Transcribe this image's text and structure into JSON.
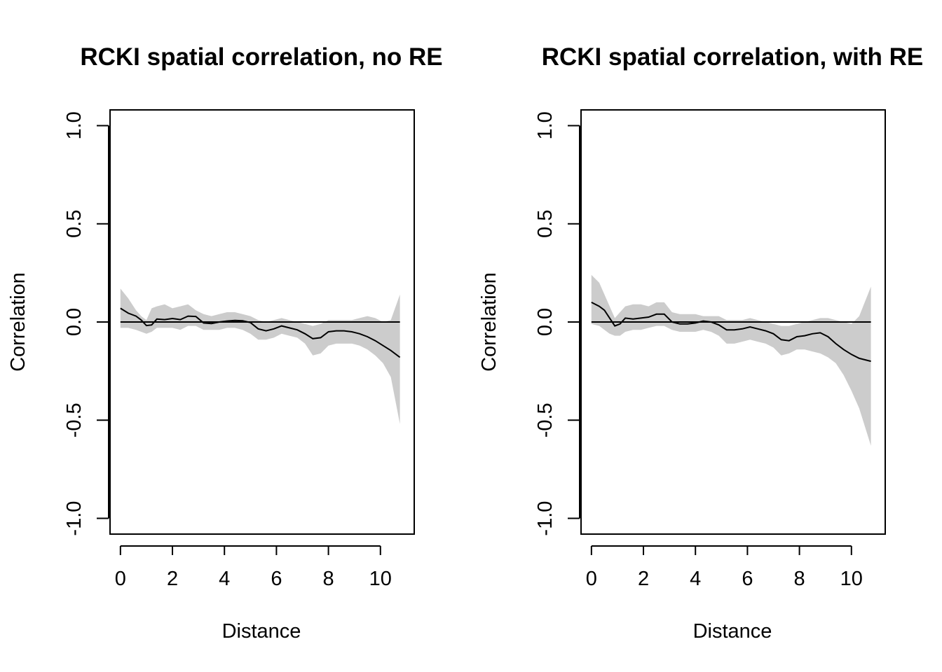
{
  "figure": {
    "background": "#ffffff",
    "band_color": "#cccccc",
    "line_color": "#000000"
  },
  "chart_data": [
    {
      "type": "line",
      "title": "RCKI spatial correlation, no RE",
      "xlabel": "Distance",
      "ylabel": "Correlation",
      "xlim": [
        -0.4,
        11.3
      ],
      "ylim": [
        -1.08,
        1.08
      ],
      "xticks": [
        0,
        2,
        4,
        6,
        8,
        10
      ],
      "yticks": [
        -1.0,
        -0.5,
        0.0,
        0.5,
        1.0
      ],
      "xtick_labels": [
        "0",
        "2",
        "4",
        "6",
        "8",
        "10"
      ],
      "ytick_labels": [
        "-1.0",
        "-0.5",
        "0.0",
        "0.5",
        "1.0"
      ],
      "reference_line": 0,
      "reference_range": [
        0,
        10.75
      ],
      "x": [
        0,
        0.3,
        0.6,
        0.8,
        1.0,
        1.2,
        1.4,
        1.7,
        2.0,
        2.3,
        2.6,
        2.9,
        3.2,
        3.5,
        3.8,
        4.1,
        4.4,
        4.7,
        5.0,
        5.3,
        5.6,
        5.9,
        6.2,
        6.5,
        6.8,
        7.1,
        7.4,
        7.7,
        8.0,
        8.3,
        8.6,
        8.9,
        9.2,
        9.5,
        9.8,
        10.1,
        10.4,
        10.75
      ],
      "y": [
        0.07,
        0.045,
        0.03,
        0.01,
        -0.018,
        -0.015,
        0.015,
        0.012,
        0.018,
        0.012,
        0.03,
        0.028,
        -0.005,
        -0.008,
        0.0,
        0.005,
        0.008,
        0.006,
        -0.003,
        -0.035,
        -0.045,
        -0.035,
        -0.02,
        -0.03,
        -0.04,
        -0.06,
        -0.085,
        -0.08,
        -0.05,
        -0.045,
        -0.045,
        -0.05,
        -0.06,
        -0.075,
        -0.095,
        -0.12,
        -0.145,
        -0.18
      ],
      "lower": [
        -0.03,
        -0.03,
        -0.04,
        -0.05,
        -0.06,
        -0.05,
        -0.03,
        -0.03,
        -0.03,
        -0.04,
        -0.02,
        -0.02,
        -0.04,
        -0.04,
        -0.04,
        -0.03,
        -0.03,
        -0.04,
        -0.06,
        -0.09,
        -0.09,
        -0.08,
        -0.06,
        -0.07,
        -0.08,
        -0.11,
        -0.17,
        -0.16,
        -0.12,
        -0.11,
        -0.11,
        -0.11,
        -0.12,
        -0.14,
        -0.17,
        -0.21,
        -0.28,
        -0.52
      ],
      "upper": [
        0.17,
        0.12,
        0.06,
        0.03,
        0.01,
        0.07,
        0.08,
        0.09,
        0.07,
        0.08,
        0.09,
        0.06,
        0.04,
        0.03,
        0.04,
        0.05,
        0.05,
        0.04,
        0.03,
        0.01,
        0.0,
        0.01,
        0.02,
        0.01,
        0.0,
        -0.01,
        -0.02,
        -0.01,
        0.01,
        0.01,
        0.01,
        0.01,
        0.02,
        0.03,
        0.02,
        0.0,
        0.01,
        0.14
      ]
    },
    {
      "type": "line",
      "title": "RCKI spatial correlation, with RE",
      "xlabel": "Distance",
      "ylabel": "Correlation",
      "xlim": [
        -0.4,
        11.3
      ],
      "ylim": [
        -1.08,
        1.08
      ],
      "xticks": [
        0,
        2,
        4,
        6,
        8,
        10
      ],
      "yticks": [
        -1.0,
        -0.5,
        0.0,
        0.5,
        1.0
      ],
      "xtick_labels": [
        "0",
        "2",
        "4",
        "6",
        "8",
        "10"
      ],
      "ytick_labels": [
        "-1.0",
        "-0.5",
        "0.0",
        "0.5",
        "1.0"
      ],
      "reference_line": 0,
      "reference_range": [
        0,
        10.75
      ],
      "x": [
        0,
        0.3,
        0.5,
        0.7,
        0.9,
        1.1,
        1.3,
        1.6,
        1.9,
        2.2,
        2.5,
        2.8,
        3.1,
        3.4,
        3.7,
        4.0,
        4.3,
        4.6,
        4.9,
        5.2,
        5.5,
        5.8,
        6.1,
        6.4,
        6.7,
        7.0,
        7.3,
        7.6,
        7.9,
        8.2,
        8.5,
        8.8,
        9.1,
        9.4,
        9.7,
        10.0,
        10.3,
        10.75
      ],
      "y": [
        0.1,
        0.08,
        0.06,
        0.02,
        -0.02,
        -0.01,
        0.02,
        0.015,
        0.02,
        0.025,
        0.04,
        0.04,
        0.0,
        -0.01,
        -0.01,
        -0.005,
        0.005,
        0.0,
        -0.015,
        -0.04,
        -0.04,
        -0.035,
        -0.025,
        -0.035,
        -0.045,
        -0.06,
        -0.09,
        -0.095,
        -0.075,
        -0.07,
        -0.06,
        -0.055,
        -0.075,
        -0.11,
        -0.14,
        -0.165,
        -0.185,
        -0.2
      ],
      "lower": [
        -0.01,
        -0.02,
        -0.04,
        -0.06,
        -0.07,
        -0.07,
        -0.05,
        -0.04,
        -0.04,
        -0.03,
        -0.02,
        -0.02,
        -0.04,
        -0.05,
        -0.05,
        -0.05,
        -0.04,
        -0.05,
        -0.07,
        -0.11,
        -0.11,
        -0.1,
        -0.09,
        -0.1,
        -0.11,
        -0.13,
        -0.17,
        -0.16,
        -0.14,
        -0.14,
        -0.15,
        -0.16,
        -0.18,
        -0.21,
        -0.27,
        -0.35,
        -0.44,
        -0.63
      ],
      "upper": [
        0.24,
        0.2,
        0.14,
        0.08,
        0.02,
        0.05,
        0.08,
        0.09,
        0.09,
        0.08,
        0.1,
        0.1,
        0.05,
        0.04,
        0.04,
        0.04,
        0.03,
        0.03,
        0.03,
        0.01,
        0.01,
        0.01,
        0.02,
        0.01,
        0.0,
        -0.01,
        -0.02,
        -0.02,
        -0.01,
        0.0,
        0.01,
        0.02,
        0.02,
        0.01,
        0.0,
        -0.01,
        0.03,
        0.18
      ]
    }
  ]
}
